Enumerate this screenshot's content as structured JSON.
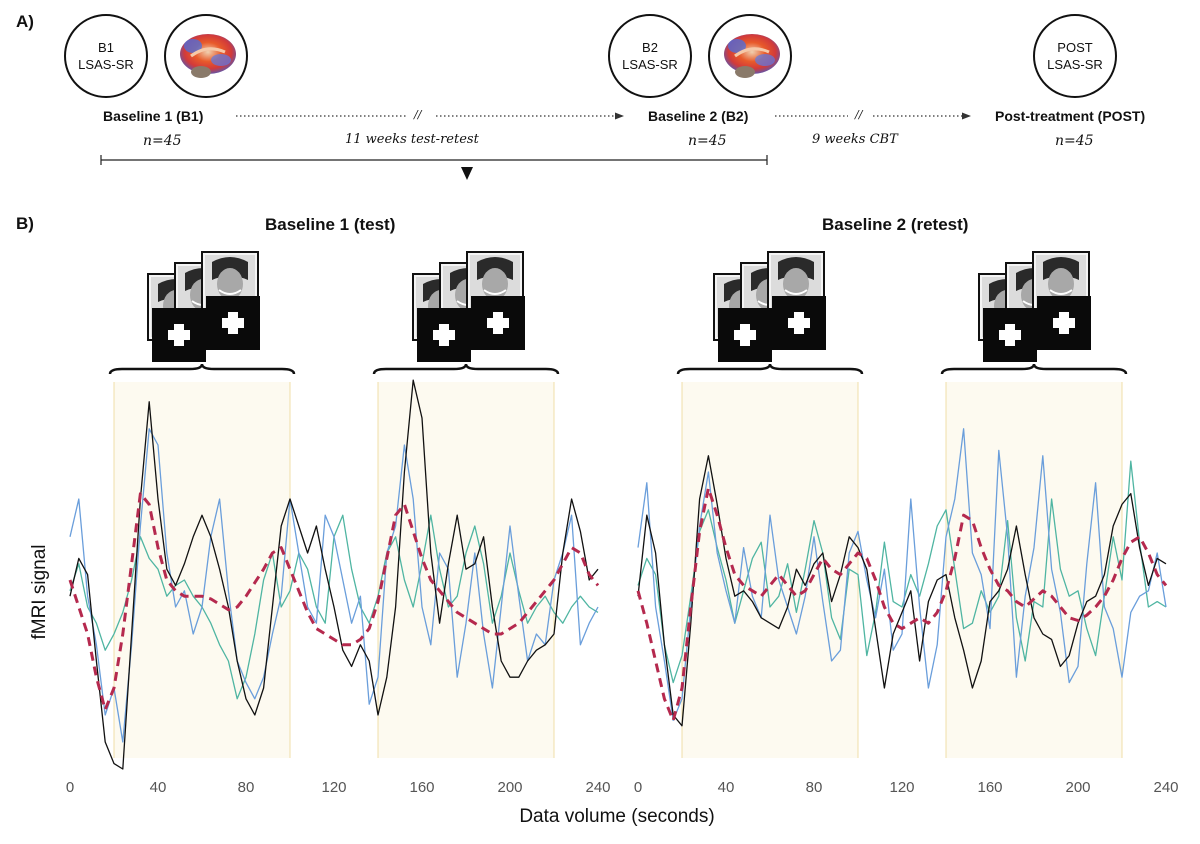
{
  "panel_a": {
    "label": "A)",
    "circles": [
      {
        "line1": "B1",
        "line2": "LSAS-SR"
      },
      {
        "line1": "B2",
        "line2": "LSAS-SR"
      },
      {
        "line1": "POST",
        "line2": "LSAS-SR"
      }
    ],
    "timepoints": [
      {
        "label": "Baseline 1 (B1)",
        "n": "n=45"
      },
      {
        "label": "Baseline 2 (B2)",
        "n": "n=45"
      },
      {
        "label": "Post-treatment (POST)",
        "n": "n=45"
      }
    ],
    "intervals": [
      "11 weeks test-retest",
      "9 weeks CBT"
    ],
    "break_mark": "//"
  },
  "panel_b": {
    "label": "B)",
    "runs": [
      "Baseline 1 (test)",
      "Baseline 2 (retest)"
    ]
  },
  "chart_data": {
    "type": "line",
    "xlabel": "Data volume (seconds)",
    "ylabel": "fMRI signal",
    "xlim": [
      0,
      240
    ],
    "xticks": [
      "0",
      "40",
      "80",
      "120",
      "160",
      "200",
      "240"
    ],
    "face_blocks": [
      [
        20,
        100
      ],
      [
        140,
        220
      ]
    ],
    "colors": {
      "black": "#111111",
      "blue": "#6a9edb",
      "green": "#4fb5a2",
      "mean": "#b5294e",
      "block": "#fdfaf0",
      "block_edge": "#f0dfa8"
    },
    "panels": [
      {
        "name": "Baseline 1 (test)",
        "series": [
          {
            "color": "black",
            "values": [
              -0.3,
              0.4,
              0.1,
              -1.5,
              -3.0,
              -3.4,
              -3.5,
              -1.0,
              1.5,
              3.3,
              1.5,
              0.2,
              -0.1,
              0.3,
              0.8,
              1.2,
              0.8,
              0.2,
              -0.5,
              -1.5,
              -2.2,
              -2.5,
              -2.0,
              -0.5,
              1.0,
              1.5,
              1.0,
              0.5,
              1.0,
              0.2,
              -0.5,
              -1.3,
              -1.6,
              -1.2,
              -1.5,
              -2.5,
              -1.8,
              -0.5,
              2.0,
              3.7,
              3.0,
              0.5,
              -0.8,
              0.3,
              1.2,
              0.2,
              0.3,
              0.8,
              -0.5,
              -1.5,
              -1.8,
              -1.8,
              -1.5,
              -1.3,
              -1.2,
              -1.0,
              0.5,
              1.5,
              0.9,
              0.0,
              0.2
            ]
          },
          {
            "color": "blue",
            "values": [
              0.8,
              1.5,
              -0.3,
              -1.2,
              -2.5,
              -2.0,
              -3.0,
              -1.2,
              1.0,
              2.8,
              2.5,
              0.5,
              -0.5,
              -0.2,
              -1.0,
              -0.5,
              0.8,
              1.5,
              -0.2,
              -1.5,
              -1.9,
              -2.2,
              -1.8,
              -1.0,
              -0.3,
              1.5,
              0.5,
              -0.5,
              -0.8,
              1.2,
              0.8,
              0.0,
              -0.8,
              -0.3,
              -2.3,
              -1.8,
              0.5,
              1.0,
              2.5,
              1.5,
              -0.5,
              -1.2,
              0.5,
              0.2,
              -1.8,
              -0.8,
              0.5,
              -1.0,
              -2.0,
              -0.5,
              1.0,
              -0.3,
              -1.5,
              -1.0,
              -1.2,
              0.0,
              0.5,
              1.2,
              -1.2,
              -0.8,
              -0.5
            ]
          },
          {
            "color": "green",
            "values": [
              -0.2,
              0.3,
              -0.5,
              -0.8,
              -1.3,
              -1.0,
              -0.6,
              0.0,
              0.8,
              0.4,
              0.2,
              -0.3,
              -0.1,
              0.0,
              -0.3,
              -0.5,
              -0.8,
              -1.2,
              -1.5,
              -2.2,
              -1.8,
              -1.0,
              0.0,
              0.5,
              -0.5,
              -0.2,
              0.5,
              0.2,
              -0.5,
              -0.8,
              0.8,
              1.2,
              0.2,
              -0.5,
              -0.8,
              -0.3,
              0.5,
              0.8,
              0.0,
              -0.5,
              0.3,
              1.2,
              0.2,
              -0.5,
              -0.3,
              0.5,
              1.0,
              0.3,
              -0.8,
              -0.3,
              0.5,
              -0.2,
              -0.8,
              -0.5,
              -0.3,
              -0.6,
              -0.8,
              -0.5,
              -0.3,
              -0.5,
              -0.6
            ]
          },
          {
            "color": "mean",
            "values": [
              0.0,
              -0.5,
              -1.0,
              -1.8,
              -2.4,
              -2.0,
              -1.0,
              0.3,
              1.6,
              1.4,
              0.6,
              0.0,
              -0.2,
              -0.3,
              -0.3,
              -0.3,
              -0.35,
              -0.45,
              -0.55,
              -0.5,
              -0.3,
              -0.05,
              0.2,
              0.5,
              0.6,
              0.2,
              -0.2,
              -0.6,
              -0.9,
              -1.0,
              -1.1,
              -1.2,
              -1.2,
              -1.1,
              -0.9,
              -0.4,
              0.4,
              1.2,
              1.4,
              0.9,
              0.4,
              0.0,
              -0.2,
              -0.4,
              -0.6,
              -0.7,
              -0.8,
              -0.9,
              -1.0,
              -1.0,
              -0.9,
              -0.8,
              -0.6,
              -0.4,
              -0.2,
              0.0,
              0.3,
              0.6,
              0.5,
              0.1,
              -0.1
            ]
          }
        ]
      },
      {
        "name": "Baseline 2 (retest)",
        "series": [
          {
            "color": "black",
            "values": [
              -0.3,
              1.2,
              0.5,
              -1.2,
              -2.5,
              -2.7,
              -0.8,
              1.5,
              2.3,
              1.4,
              0.4,
              -0.3,
              -0.2,
              -0.4,
              -0.7,
              -0.8,
              -0.9,
              -0.5,
              0.2,
              -0.1,
              0.3,
              0.5,
              -0.4,
              0.1,
              0.8,
              0.6,
              0.2,
              -0.9,
              -2.0,
              -1.0,
              -0.6,
              -0.2,
              -1.5,
              -0.4,
              0.0,
              0.1,
              -0.7,
              -1.3,
              -2.0,
              -1.5,
              -0.4,
              -0.2,
              0.2,
              1.0,
              0.1,
              -0.7,
              -1.0,
              -1.1,
              -1.6,
              -1.4,
              -0.8,
              -0.4,
              -0.3,
              0.1,
              1.0,
              1.4,
              1.6,
              0.6,
              -0.1,
              0.4,
              0.3
            ]
          },
          {
            "color": "blue",
            "values": [
              0.6,
              1.8,
              -0.5,
              -1.5,
              -2.6,
              -2.2,
              -0.5,
              1.0,
              2.0,
              0.5,
              -0.2,
              -0.8,
              0.6,
              -0.3,
              -0.7,
              1.2,
              0.0,
              -0.5,
              -1.0,
              -0.3,
              0.8,
              -0.4,
              -1.5,
              -1.3,
              0.5,
              0.9,
              0.0,
              -0.7,
              0.2,
              -1.3,
              -1.0,
              1.5,
              -0.5,
              -2.0,
              -1.2,
              0.8,
              1.5,
              2.8,
              0.5,
              0.1,
              -0.9,
              2.4,
              0.8,
              -1.8,
              -0.3,
              0.6,
              2.3,
              0.2,
              -0.6,
              -1.9,
              -1.6,
              0.3,
              1.8,
              -0.5,
              -0.9,
              -1.8,
              -0.6,
              -0.3,
              -0.2,
              0.5,
              -0.5
            ]
          },
          {
            "color": "green",
            "values": [
              -0.1,
              0.4,
              0.1,
              -1.2,
              -1.9,
              -1.4,
              -0.3,
              0.9,
              1.3,
              0.6,
              0.0,
              -0.8,
              -0.2,
              0.4,
              0.7,
              -0.5,
              -0.3,
              0.3,
              -0.6,
              0.2,
              1.1,
              0.5,
              -0.7,
              -1.1,
              0.2,
              0.1,
              -1.4,
              -0.6,
              0.7,
              -0.4,
              -0.5,
              0.1,
              -0.3,
              0.3,
              1.0,
              1.3,
              0.2,
              -0.9,
              -0.8,
              -0.2,
              -0.6,
              -0.3,
              1.1,
              -0.7,
              -1.5,
              -0.4,
              -0.5,
              1.5,
              0.2,
              -0.3,
              -0.2,
              -0.9,
              -1.4,
              -0.3,
              0.8,
              0.0,
              2.2,
              0.7,
              -0.5,
              -0.4,
              -0.5
            ]
          },
          {
            "color": "mean",
            "values": [
              -0.2,
              -0.8,
              -1.5,
              -2.2,
              -2.6,
              -2.0,
              -0.5,
              0.9,
              1.7,
              1.2,
              0.6,
              0.1,
              -0.1,
              -0.2,
              -0.3,
              -0.1,
              0.1,
              -0.1,
              -0.3,
              -0.2,
              0.1,
              0.4,
              0.2,
              0.1,
              0.3,
              0.5,
              0.4,
              0.0,
              -0.5,
              -0.8,
              -0.9,
              -0.8,
              -0.7,
              -0.8,
              -0.6,
              -0.2,
              0.4,
              1.2,
              1.1,
              0.6,
              0.2,
              -0.1,
              -0.2,
              -0.4,
              -0.5,
              -0.35,
              -0.2,
              -0.3,
              -0.5,
              -0.7,
              -0.75,
              -0.65,
              -0.5,
              -0.3,
              0.0,
              0.4,
              0.7,
              0.8,
              0.5,
              0.1,
              -0.1
            ]
          }
        ]
      }
    ]
  }
}
